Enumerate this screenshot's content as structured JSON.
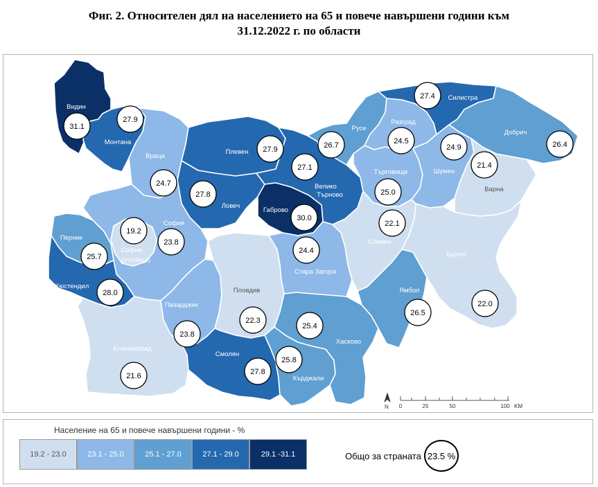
{
  "title_line1": "Фиг. 2. Относителен дял на населението на 65 и повече навършени години към",
  "title_line2": "31.12.2022 г. по области",
  "colors": {
    "c1": "#cfdff0",
    "c2": "#8db8e8",
    "c3": "#5f9fd1",
    "c4": "#2468b0",
    "c5": "#0b3068",
    "border": "#ffffff"
  },
  "regions": [
    {
      "name": "Видин",
      "value": "31.1",
      "cls": "c5"
    },
    {
      "name": "Монтана",
      "value": "27.9",
      "cls": "c4"
    },
    {
      "name": "Враца",
      "value": "24.7",
      "cls": "c2"
    },
    {
      "name": "Плевен",
      "value": "27.9",
      "cls": "c4"
    },
    {
      "name": "Ловеч",
      "value": "27.8",
      "cls": "c4"
    },
    {
      "name": "Велико Търново",
      "value": "27.1",
      "cls": "c4"
    },
    {
      "name": "Габрово",
      "value": "30.0",
      "cls": "c5"
    },
    {
      "name": "Русе",
      "value": "26.7",
      "cls": "c3"
    },
    {
      "name": "Разград",
      "value": "24.5",
      "cls": "c2"
    },
    {
      "name": "Силистра",
      "value": "27.4",
      "cls": "c4"
    },
    {
      "name": "Добрич",
      "value": "26.4",
      "cls": "c3"
    },
    {
      "name": "Търговище",
      "value": "25.0",
      "cls": "c2"
    },
    {
      "name": "Шумен",
      "value": "24.9",
      "cls": "c2"
    },
    {
      "name": "Варна",
      "value": "21.4",
      "cls": "c1"
    },
    {
      "name": "София",
      "value": "23.8",
      "cls": "c2"
    },
    {
      "name": "София (столица)",
      "value": "19.2",
      "cls": "c1"
    },
    {
      "name": "Перник",
      "value": "25.7",
      "cls": "c3"
    },
    {
      "name": "Кюстендил",
      "value": "28.0",
      "cls": "c4"
    },
    {
      "name": "Благоевград",
      "value": "21.6",
      "cls": "c1"
    },
    {
      "name": "Пазарджик",
      "value": "23.8",
      "cls": "c2"
    },
    {
      "name": "Пловдив",
      "value": "22.3",
      "cls": "c1"
    },
    {
      "name": "Смолян",
      "value": "27.8",
      "cls": "c4"
    },
    {
      "name": "Кърджали",
      "value": "25.8",
      "cls": "c3"
    },
    {
      "name": "Хасково",
      "value": "25.4",
      "cls": "c3"
    },
    {
      "name": "Стара Загора",
      "value": "24.4",
      "cls": "c2"
    },
    {
      "name": "Сливен",
      "value": "22.1",
      "cls": "c1"
    },
    {
      "name": "Ямбол",
      "value": "26.5",
      "cls": "c3"
    },
    {
      "name": "Бургас",
      "value": "22.0",
      "cls": "c1"
    }
  ],
  "scale": {
    "n": "N",
    "t0": "0",
    "t1": "25",
    "t2": "50",
    "t3": "100",
    "unit": "KM"
  },
  "legend": {
    "title": "Население на 65 и повече навършени години - %",
    "items": [
      {
        "label": "19.2 - 23.0",
        "color": "#cfdff0"
      },
      {
        "label": "23.1 - 25.0",
        "color": "#8db8e8"
      },
      {
        "label": "25.1 - 27.0",
        "color": "#5f9fd1"
      },
      {
        "label": "27.1 - 29.0",
        "color": "#2468b0"
      },
      {
        "label": "29.1 -31.1",
        "color": "#0b3068"
      }
    ],
    "total_label": "Общо за страната",
    "total_value": "23.5 %"
  }
}
